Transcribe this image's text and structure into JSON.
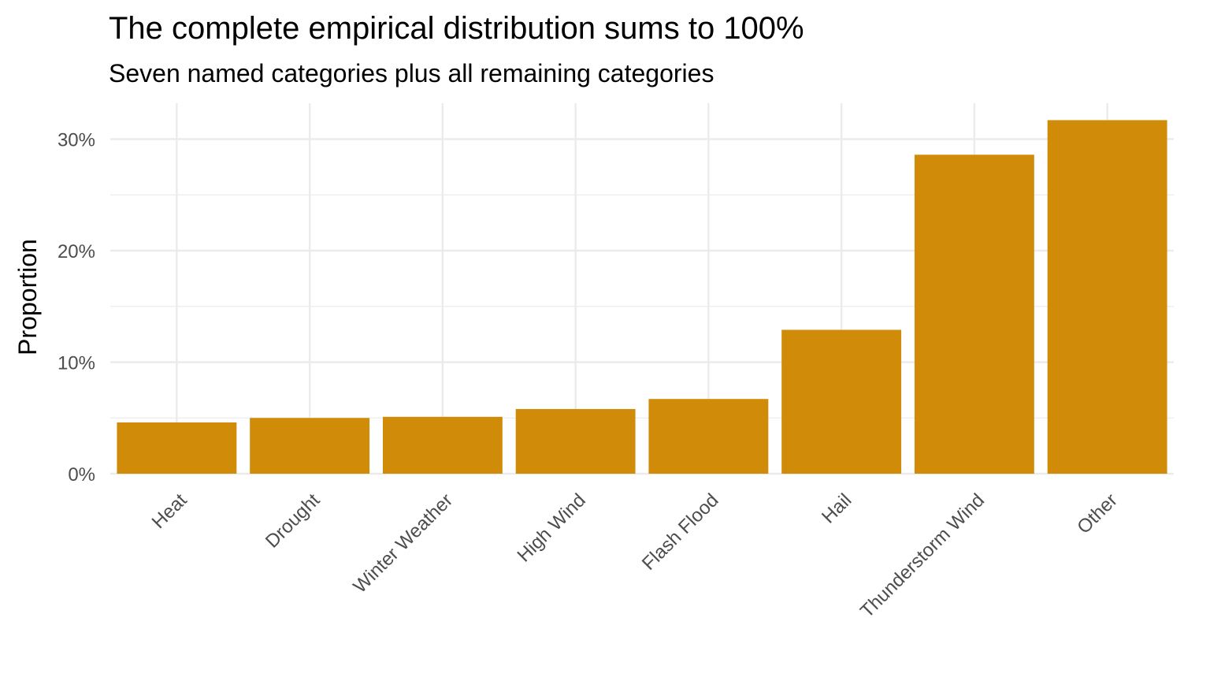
{
  "chart_data": {
    "type": "bar",
    "title": "The complete empirical distribution sums to 100%",
    "subtitle": "Seven named categories plus all remaining categories",
    "xlabel": "",
    "ylabel": "Proportion",
    "categories": [
      "Heat",
      "Drought",
      "Winter Weather",
      "High Wind",
      "Flash Flood",
      "Hail",
      "Thunderstorm Wind",
      "Other"
    ],
    "values": [
      0.046,
      0.05,
      0.051,
      0.058,
      0.067,
      0.129,
      0.286,
      0.317
    ],
    "ylim": [
      0,
      0.33
    ],
    "yticks": [
      0,
      0.1,
      0.2,
      0.3
    ],
    "ytick_labels": [
      "0%",
      "10%",
      "20%",
      "30%"
    ],
    "grid": true,
    "legend": "none",
    "bar_color": "#D08B08",
    "grid_color": "#EBEBEB"
  }
}
